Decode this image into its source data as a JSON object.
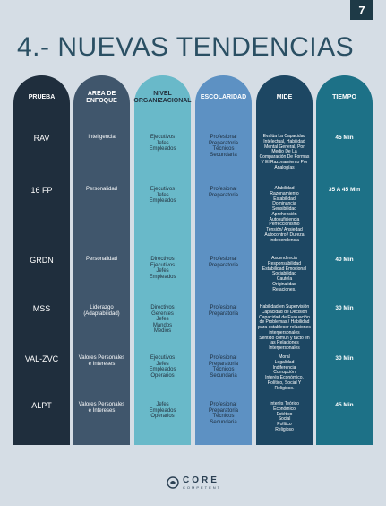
{
  "page_number": "7",
  "title": "4.- NUEVAS TENDENCIAS",
  "headers": [
    "PRUEBA",
    "AREA DE ENFOQUE",
    "NIVEL ORGANIZACIONAL",
    "ESCOLARIDAD",
    "MIDE",
    "TIEMPO"
  ],
  "rows": [
    {
      "prueba": "RAV",
      "area": "Inteligencia",
      "nivel": "Ejecutivos\nJefes\nEmpleados",
      "escolaridad": "Profesional\nPreparatoria\nTécnicos\nSecundaria",
      "mide": "Evalúa La Capacidad Intelectual, Habilidad Mental General, Por Medio De La Comparación De Formas Y El Razonamiento Por Analogías",
      "tiempo": "45 Min"
    },
    {
      "prueba": "16 FP",
      "area": "Personalidad",
      "nivel": "Ejecutivos\nJefes\nEmpleados",
      "escolaridad": "Profesional\nPreparatoria",
      "mide": "Afabilidad\nRazonamiento\nEstabilidad\nDominancia\nSensibilidad\nAprehensión\nAutosuficiencia\nPerfeccionismo\nTensión/ Ansiedad\nAutocontrol/ Dureza\nIndependencia",
      "tiempo": "35 A 45 Min"
    },
    {
      "prueba": "GRDN",
      "area": "Personalidad",
      "nivel": "Directivos\nEjecutivos\nJefes\nEmpleados",
      "escolaridad": "Profesional\nPreparatoria",
      "mide": "Ascendencia\nResponsabilidad\nEstabilidad Emocional\nSociabilidad\nCautela\nOriginalidad\nRelaciones.",
      "tiempo": "40 Min"
    },
    {
      "prueba": "MSS",
      "area": "Liderazgo\n(Adaptabilidad)",
      "nivel": "Directivos\nGerentes\nJefes\nMandos\nMedios",
      "escolaridad": "Profesional\nPreparatoria",
      "mide": "Habilidad en Supervisión\nCapacidad de Decisión\nCapacidad de Evaluación de Problemas / Habilidad para establecer relaciones interpersonales\nSentido común y tacto en las Relaciones Interpersonales",
      "tiempo": "30 Min"
    },
    {
      "prueba": "VAL-ZVC",
      "area": "Valores Personales\ne Intereses",
      "nivel": "Ejecutivos\nJefes\nEmpleados\nOperarios",
      "escolaridad": "Profesional\nPreparatoria\nTécnicos\nSecundaria",
      "mide": "Moral\nLegalidad\nIndiferencia\nCorrupción\nInterés Económico,\nPolítico, Social Y Religioso.",
      "tiempo": "30 Min"
    },
    {
      "prueba": "ALPT",
      "area": "Valores Personales\ne Intereses",
      "nivel": "Jefes\nEmpleados\nOperarios",
      "escolaridad": "Profesional\nPreparatoria\nTécnicos\nSecundaria",
      "mide": "Interés Teórico\nEconómico\nEstético\nSocial\nPolítico\nReligioso",
      "tiempo": "45 Min"
    }
  ],
  "logo": {
    "name": "CORE",
    "tagline": "COMPETENT"
  }
}
